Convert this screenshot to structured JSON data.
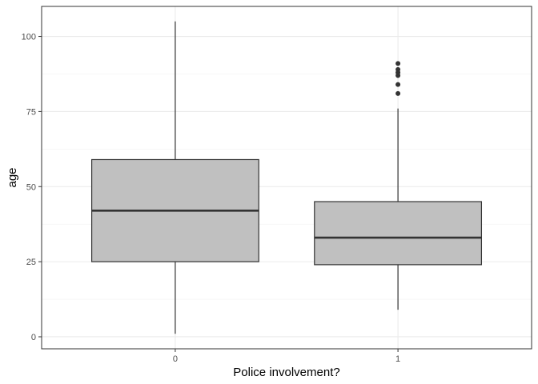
{
  "chart_data": {
    "type": "box",
    "xlabel": "Police involvement?",
    "ylabel": "age",
    "categories": [
      "0",
      "1"
    ],
    "ylim": [
      -4,
      110
    ],
    "yticks": [
      0,
      25,
      50,
      75,
      100
    ],
    "grid": true,
    "box_fill": "#C0C0C0",
    "line_color": "#333333",
    "boxes": [
      {
        "category": "0",
        "lower_whisker": 1,
        "q1": 25,
        "median": 42,
        "q3": 59,
        "upper_whisker": 105,
        "outliers": []
      },
      {
        "category": "1",
        "lower_whisker": 9,
        "q1": 24,
        "median": 33,
        "q3": 45,
        "upper_whisker": 76,
        "outliers": [
          81,
          84,
          87,
          88,
          89,
          91
        ]
      }
    ]
  }
}
